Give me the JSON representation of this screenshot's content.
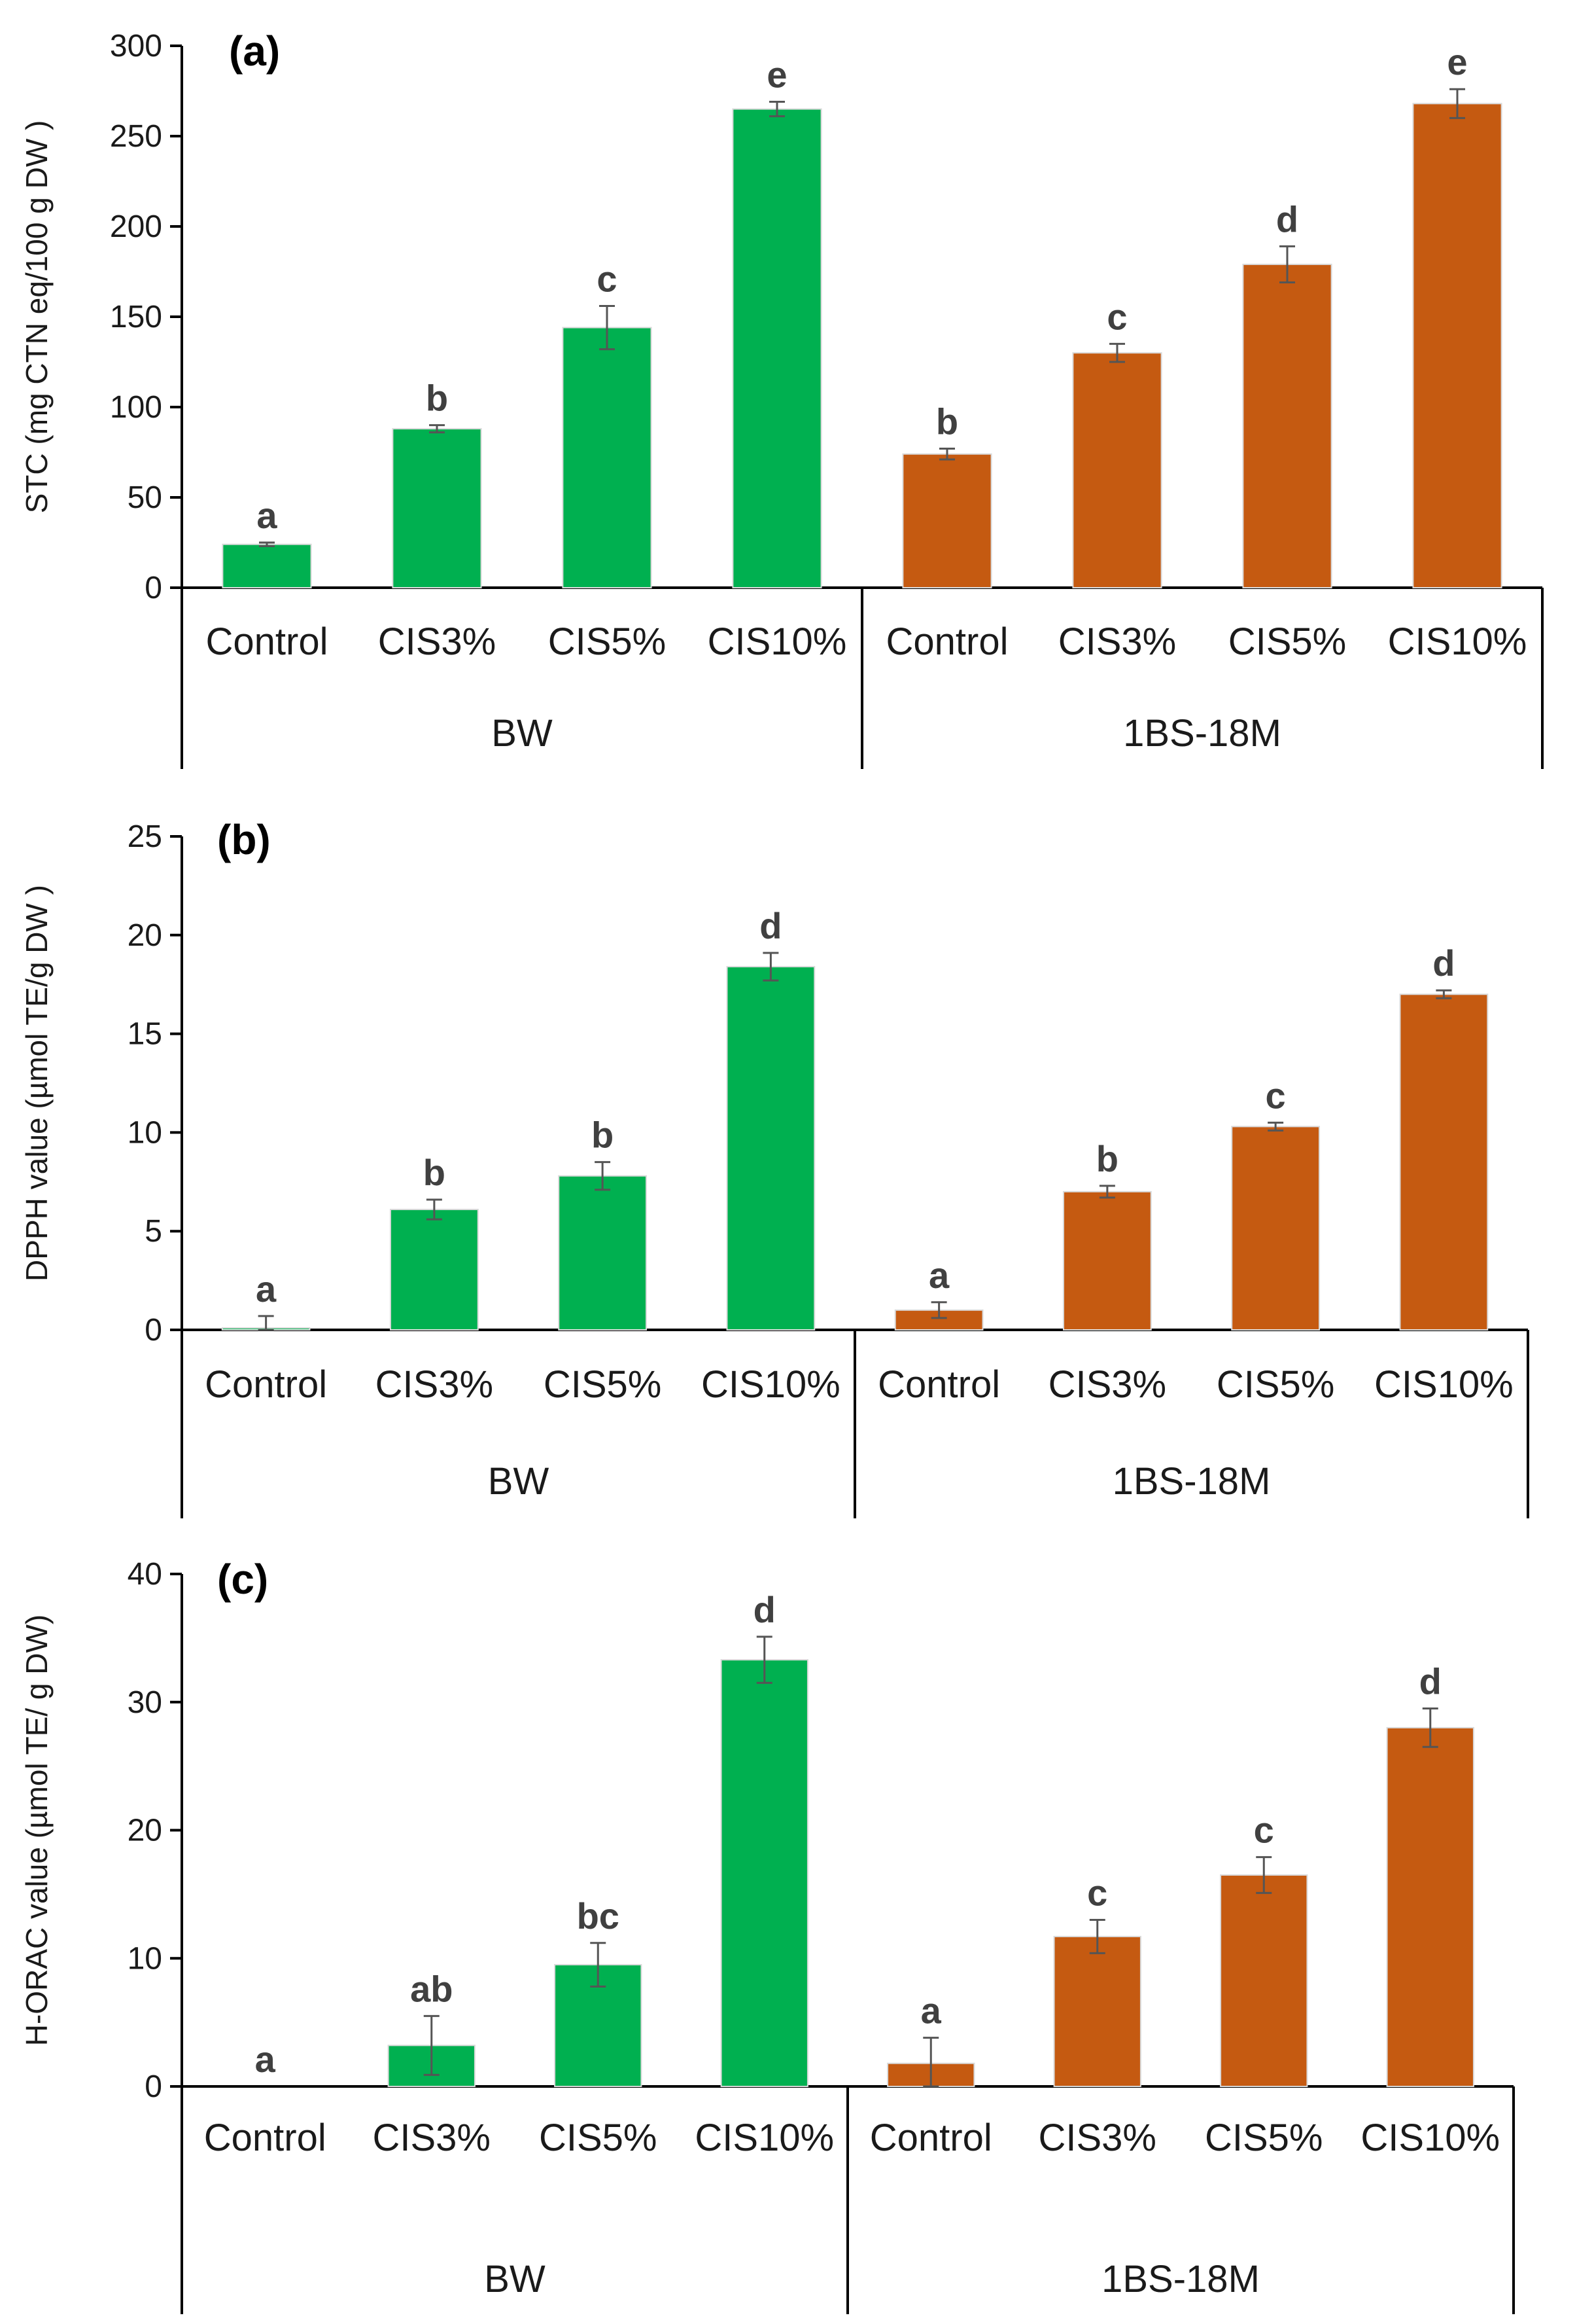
{
  "chart_data": [
    {
      "panel": "(a)",
      "type": "bar",
      "ylabel": "STC (mg CTN eq/100 g DW )",
      "ylim": [
        0,
        300
      ],
      "yticks": [
        0,
        50,
        100,
        150,
        200,
        250,
        300
      ],
      "groups": [
        {
          "name": "BW",
          "color": "#00B050",
          "categories": [
            "Control",
            "CIS3%",
            "CIS5%",
            "CIS10%"
          ],
          "values": [
            24,
            88,
            144,
            265
          ],
          "errors": [
            1,
            2,
            12,
            4
          ],
          "letters": [
            "a",
            "b",
            "c",
            "e"
          ]
        },
        {
          "name": "1BS-18M",
          "color": "#C55A11",
          "categories": [
            "Control",
            "CIS3%",
            "CIS5%",
            "CIS10%"
          ],
          "values": [
            74,
            130,
            179,
            268
          ],
          "errors": [
            3,
            5,
            10,
            8
          ],
          "letters": [
            "b",
            "c",
            "d",
            "e"
          ]
        }
      ]
    },
    {
      "panel": "(b)",
      "type": "bar",
      "ylabel": "DPPH value (µmol TE/g DW )",
      "ylim": [
        0,
        25
      ],
      "yticks": [
        0,
        5,
        10,
        15,
        20,
        25
      ],
      "groups": [
        {
          "name": "BW",
          "color": "#00B050",
          "categories": [
            "Control",
            "CIS3%",
            "CIS5%",
            "CIS10%"
          ],
          "values": [
            0.1,
            6.1,
            7.8,
            18.4
          ],
          "errors": [
            0.6,
            0.5,
            0.7,
            0.7
          ],
          "letters": [
            "a",
            "b",
            "b",
            "d"
          ]
        },
        {
          "name": "1BS-18M",
          "color": "#C55A11",
          "categories": [
            "Control",
            "CIS3%",
            "CIS5%",
            "CIS10%"
          ],
          "values": [
            1.0,
            7.0,
            10.3,
            17.0
          ],
          "errors": [
            0.4,
            0.3,
            0.2,
            0.2
          ],
          "letters": [
            "a",
            "b",
            "c",
            "d"
          ]
        }
      ]
    },
    {
      "panel": "(c)",
      "type": "bar",
      "ylabel": "H-ORAC value  (µmol TE/ g DW)",
      "ylim": [
        0,
        40
      ],
      "yticks": [
        0,
        10,
        20,
        30,
        40
      ],
      "groups": [
        {
          "name": "BW",
          "color": "#00B050",
          "categories": [
            "Control",
            "CIS3%",
            "CIS5%",
            "CIS10%"
          ],
          "values": [
            0,
            3.2,
            9.5,
            33.3
          ],
          "errors": [
            0,
            2.3,
            1.7,
            1.8
          ],
          "letters": [
            "a",
            "ab",
            "bc",
            "d"
          ]
        },
        {
          "name": "1BS-18M",
          "color": "#C55A11",
          "categories": [
            "Control",
            "CIS3%",
            "CIS5%",
            "CIS10%"
          ],
          "values": [
            1.8,
            11.7,
            16.5,
            28.0
          ],
          "errors": [
            2.0,
            1.3,
            1.4,
            1.5
          ],
          "letters": [
            "a",
            "c",
            "c",
            "d"
          ]
        }
      ]
    }
  ]
}
